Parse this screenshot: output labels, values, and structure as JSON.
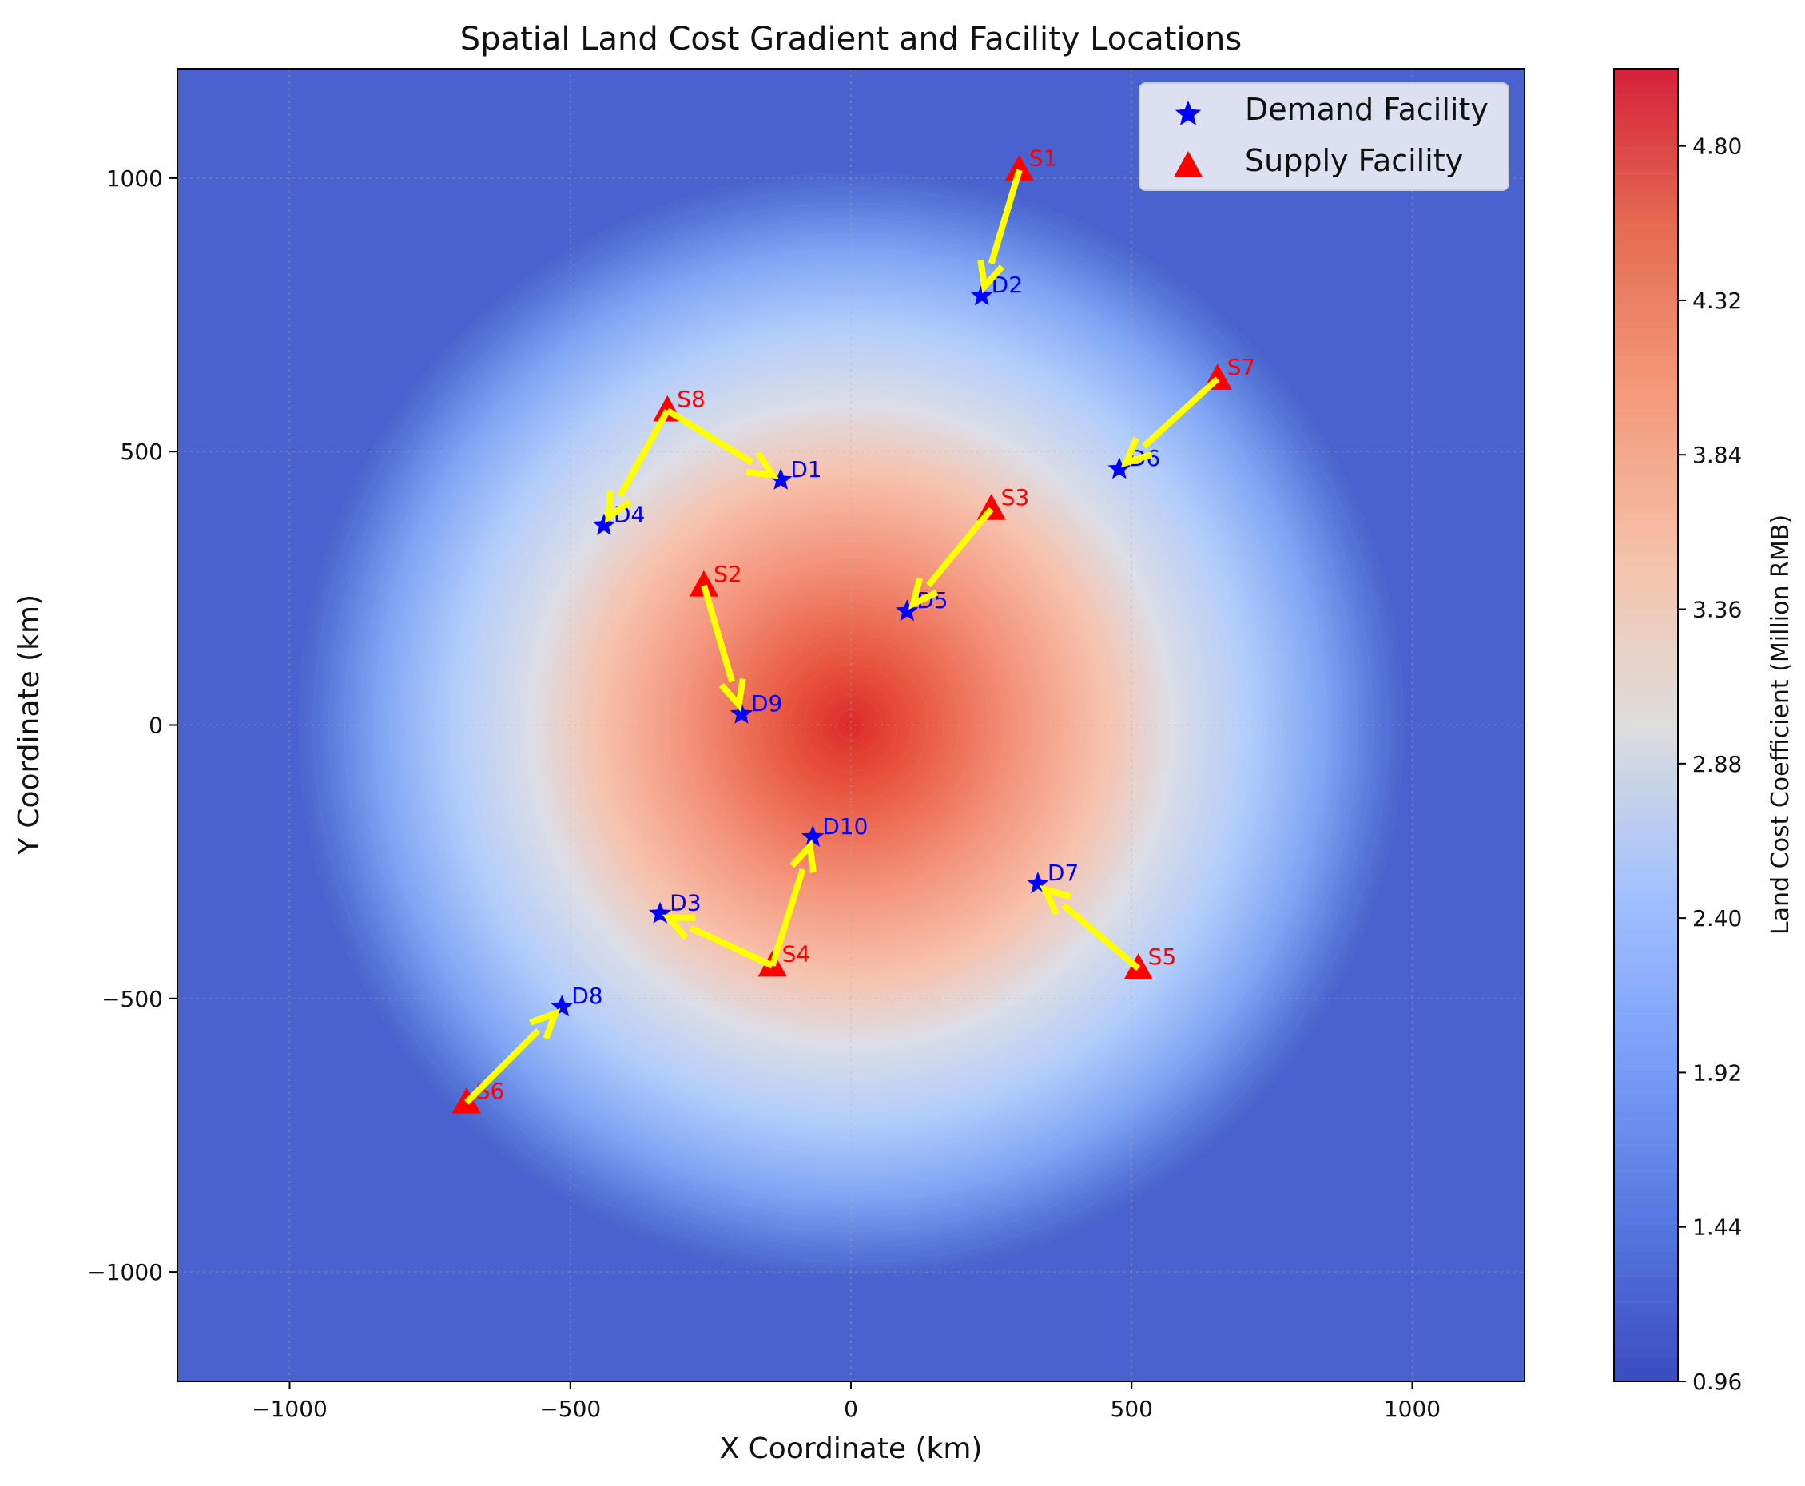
{
  "chart_data": {
    "type": "scatter",
    "title": "Spatial Land Cost Gradient and Facility Locations",
    "xlabel": "X Coordinate (km)",
    "ylabel": "Y Coordinate (km)",
    "xlim": [
      -1200,
      1200
    ],
    "ylim": [
      -1200,
      1200
    ],
    "xticks": [
      -1000,
      -500,
      0,
      500,
      1000
    ],
    "yticks": [
      -1000,
      -500,
      0,
      500,
      1000
    ],
    "xtick_labels": [
      "−1000",
      "−500",
      "0",
      "500",
      "1000"
    ],
    "ytick_labels": [
      "−1000",
      "−500",
      "0",
      "500",
      "1000"
    ],
    "grid": true,
    "legend_position": "top-right",
    "legend": [
      {
        "label": "Demand Facility",
        "marker": "star",
        "color": "#0000ff"
      },
      {
        "label": "Supply Facility",
        "marker": "triangle",
        "color": "#ff0000"
      }
    ],
    "gradient": {
      "description": "radial land cost surface centered at origin",
      "center": [
        0,
        0
      ],
      "peak_value": 5.0,
      "base_value": 0.96,
      "radius_km": 1000
    },
    "colorbar": {
      "label": "Land Cost Coefficient (Million RMB)",
      "min": 0.96,
      "max": 5.04,
      "ticks": [
        0.96,
        1.44,
        1.92,
        2.4,
        2.88,
        3.36,
        3.84,
        4.32,
        4.8
      ],
      "tick_labels": [
        "0.96",
        "1.44",
        "1.92",
        "2.40",
        "2.88",
        "3.36",
        "3.84",
        "4.32",
        "4.80"
      ]
    },
    "demand_facilities": [
      {
        "name": "D1",
        "x": -125,
        "y": 448
      },
      {
        "name": "D2",
        "x": 233,
        "y": 785
      },
      {
        "name": "D3",
        "x": -340,
        "y": -345
      },
      {
        "name": "D4",
        "x": -440,
        "y": 365
      },
      {
        "name": "D5",
        "x": 100,
        "y": 208
      },
      {
        "name": "D6",
        "x": 478,
        "y": 468
      },
      {
        "name": "D7",
        "x": 333,
        "y": -290
      },
      {
        "name": "D8",
        "x": -515,
        "y": -515
      },
      {
        "name": "D9",
        "x": -195,
        "y": 20
      },
      {
        "name": "D10",
        "x": -68,
        "y": -205
      }
    ],
    "supply_facilities": [
      {
        "name": "S1",
        "x": 300,
        "y": 1015
      },
      {
        "name": "S2",
        "x": -262,
        "y": 255
      },
      {
        "name": "S3",
        "x": 250,
        "y": 395
      },
      {
        "name": "S4",
        "x": -140,
        "y": -440
      },
      {
        "name": "S5",
        "x": 512,
        "y": -445
      },
      {
        "name": "S6",
        "x": -685,
        "y": -690
      },
      {
        "name": "S7",
        "x": 653,
        "y": 633
      },
      {
        "name": "S8",
        "x": -327,
        "y": 575
      }
    ],
    "flows": [
      {
        "from": "S1",
        "to": "D2"
      },
      {
        "from": "S8",
        "to": "D1"
      },
      {
        "from": "S8",
        "to": "D4"
      },
      {
        "from": "S7",
        "to": "D6"
      },
      {
        "from": "S3",
        "to": "D5"
      },
      {
        "from": "S2",
        "to": "D9"
      },
      {
        "from": "S4",
        "to": "D10"
      },
      {
        "from": "S4",
        "to": "D3"
      },
      {
        "from": "S5",
        "to": "D7"
      },
      {
        "from": "S6",
        "to": "D8"
      }
    ]
  }
}
